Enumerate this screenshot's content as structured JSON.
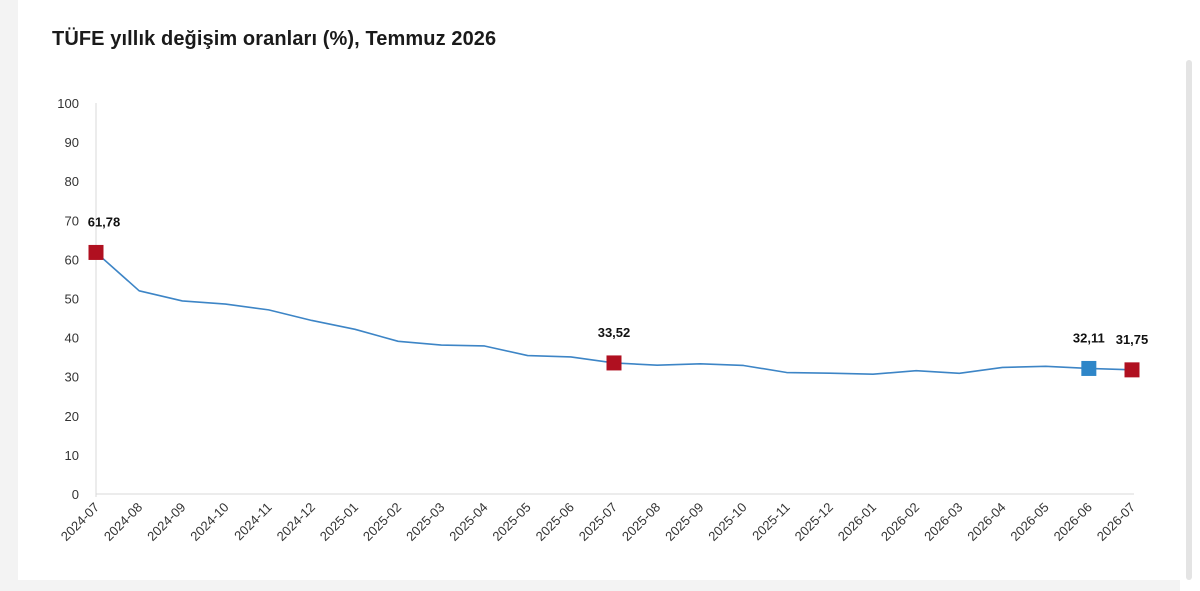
{
  "chart_data": {
    "type": "line",
    "title": "TÜFE yıllık değişim oranları (%), Temmuz 2026",
    "xlabel": "",
    "ylabel": "",
    "ylim": [
      0,
      100
    ],
    "yticks": [
      0,
      10,
      20,
      30,
      40,
      50,
      60,
      70,
      80,
      90,
      100
    ],
    "grid": false,
    "legend": "none",
    "categories": [
      "2024-07",
      "2024-08",
      "2024-09",
      "2024-10",
      "2024-11",
      "2024-12",
      "2025-01",
      "2025-02",
      "2025-03",
      "2025-04",
      "2025-05",
      "2025-06",
      "2025-07",
      "2025-08",
      "2025-09",
      "2025-10",
      "2025-11",
      "2025-12",
      "2026-01",
      "2026-02",
      "2026-03",
      "2026-04",
      "2026-05",
      "2026-06",
      "2026-07"
    ],
    "series": [
      {
        "values": [
          61.78,
          51.97,
          49.38,
          48.58,
          47.09,
          44.38,
          42.12,
          39.05,
          38.1,
          37.86,
          35.41,
          35.05,
          33.52,
          32.95,
          33.29,
          32.87,
          31.07,
          30.89,
          30.65,
          31.53,
          30.87,
          32.37,
          32.66,
          32.11,
          31.75
        ],
        "color": "#3d85c6"
      }
    ],
    "highlighted_points": [
      {
        "category": "2024-07",
        "value": 61.78,
        "label": "61,78",
        "color": "#b01020"
      },
      {
        "category": "2025-07",
        "value": 33.52,
        "label": "33,52",
        "color": "#b01020"
      },
      {
        "category": "2026-06",
        "value": 32.11,
        "label": "32,11",
        "color": "#2e86c8"
      },
      {
        "category": "2026-07",
        "value": 31.75,
        "label": "31,75",
        "color": "#b01020"
      }
    ]
  }
}
